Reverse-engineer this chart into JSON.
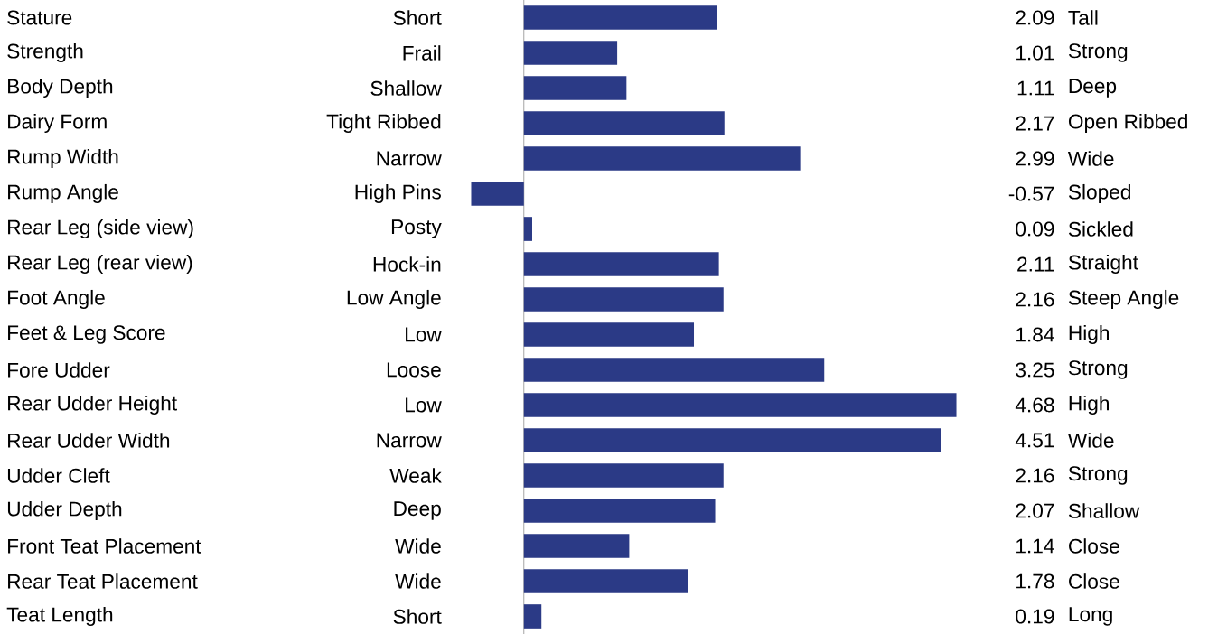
{
  "chart_data": {
    "type": "bar",
    "orientation": "horizontal",
    "color": "#2b3a86",
    "data_labels": true,
    "categories": [
      "Stature",
      "Strength",
      "Body Depth",
      "Dairy Form",
      "Rump Width",
      "Rump Angle",
      "Rear Leg (side view)",
      "Rear Leg (rear view)",
      "Foot Angle",
      "Feet & Leg Score",
      "Fore Udder",
      "Rear Udder Height",
      "Rear Udder Width",
      "Udder Cleft",
      "Udder Depth",
      "Front Teat Placement",
      "Rear Teat Placement",
      "Teat Length"
    ],
    "values": [
      2.09,
      1.01,
      1.11,
      2.17,
      2.99,
      -0.57,
      0.09,
      2.11,
      2.16,
      1.84,
      3.25,
      4.68,
      4.51,
      2.16,
      2.07,
      1.14,
      1.78,
      0.19
    ],
    "annotations": [
      "Short",
      "Tall",
      "Frail",
      "Strong",
      "Shallow",
      "Deep",
      "Tight Ribbed",
      "Open Ribbed",
      "Narrow",
      "Wide",
      "High Pins",
      "Sloped",
      "Posty",
      "Sickled",
      "Hock-in",
      "Straight",
      "Low Angle",
      "Steep Angle",
      "Low",
      "High",
      "Loose",
      "Strong",
      "Low",
      "High",
      "Narrow",
      "Wide",
      "Weak",
      "Strong",
      "Deep",
      "Shallow",
      "Wide",
      "Close",
      "Wide",
      "Close",
      "Short",
      "Long"
    ]
  }
}
